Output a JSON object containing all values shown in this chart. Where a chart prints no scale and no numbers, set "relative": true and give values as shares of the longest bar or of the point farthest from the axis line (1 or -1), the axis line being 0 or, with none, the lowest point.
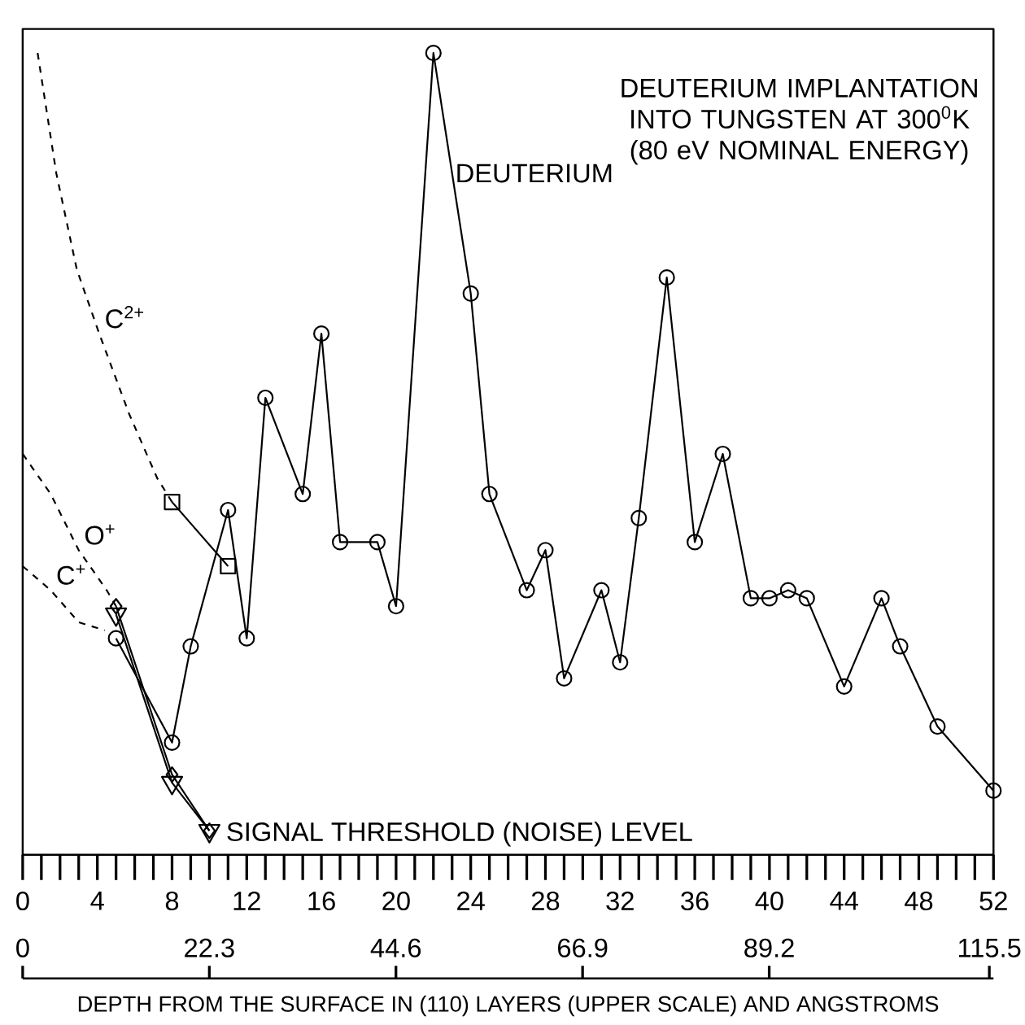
{
  "chart_data": {
    "type": "line",
    "title": "DEUTERIUM IMPLANTATION INTO TUNGSTEN AT 300$^{0}$K (80 eV NOMINAL ENERGY)",
    "xlabel": "DEPTH FROM THE SURFACE IN (110) LAYERS (UPPER SCALE) AND ANGSTROMS",
    "relative": true,
    "grid": false,
    "xlim": [
      0,
      52
    ],
    "xticks": [
      0,
      {
        "value": 1,
        "label": null
      },
      {
        "value": 2,
        "label": null
      },
      {
        "value": 3,
        "label": null
      },
      4,
      {
        "value": 5,
        "label": null
      },
      {
        "value": 6,
        "label": null
      },
      {
        "value": 7,
        "label": null
      },
      8,
      {
        "value": 9,
        "label": null
      },
      {
        "value": 10,
        "label": null
      },
      {
        "value": 11,
        "label": null
      },
      12,
      {
        "value": 13,
        "label": null
      },
      {
        "value": 14,
        "label": null
      },
      {
        "value": 15,
        "label": null
      },
      16,
      {
        "value": 17,
        "label": null
      },
      {
        "value": 18,
        "label": null
      },
      {
        "value": 19,
        "label": null
      },
      20,
      {
        "value": 21,
        "label": null
      },
      {
        "value": 22,
        "label": null
      },
      {
        "value": 23,
        "label": null
      },
      24,
      {
        "value": 25,
        "label": null
      },
      {
        "value": 26,
        "label": null
      },
      {
        "value": 27,
        "label": null
      },
      28,
      {
        "value": 29,
        "label": null
      },
      {
        "value": 30,
        "label": null
      },
      {
        "value": 31,
        "label": null
      },
      32,
      {
        "value": 33,
        "label": null
      },
      {
        "value": 34,
        "label": null
      },
      {
        "value": 35,
        "label": null
      },
      36,
      {
        "value": 37,
        "label": null
      },
      {
        "value": 38,
        "label": null
      },
      {
        "value": 39,
        "label": null
      },
      40,
      {
        "value": 41,
        "label": null
      },
      {
        "value": 42,
        "label": null
      },
      {
        "value": 43,
        "label": null
      },
      44,
      {
        "value": 45,
        "label": null
      },
      {
        "value": 46,
        "label": null
      },
      {
        "value": 47,
        "label": null
      },
      48,
      {
        "value": 49,
        "label": null
      },
      {
        "value": 50,
        "label": null
      },
      {
        "value": 51,
        "label": null
      },
      52
    ],
    "x2lim": [
      0,
      116
    ],
    "x2ticks": [
      0,
      22.3,
      44.6,
      66.9,
      89.2,
      115.5
    ],
    "annotations": [
      "SIGNAL THRESHOLD (NOISE) LEVEL"
    ],
    "series": [
      {
        "name": "DEUTERIUM",
        "color": "#000000",
        "marker": "circle",
        "line_style": "solid",
        "x": [
          5,
          8,
          9,
          11,
          12,
          13,
          15,
          16,
          17,
          19,
          20,
          22,
          24,
          25,
          27,
          28,
          29,
          31,
          32,
          33,
          34.5,
          36,
          37.5,
          39,
          40,
          41,
          42,
          44,
          46,
          47,
          49,
          52
        ],
        "values": [
          0.27,
          0.14,
          0.26,
          0.43,
          0.27,
          0.57,
          0.45,
          0.65,
          0.39,
          0.39,
          0.31,
          1.0,
          0.7,
          0.45,
          0.33,
          0.38,
          0.22,
          0.33,
          0.24,
          0.42,
          0.72,
          0.39,
          0.5,
          0.32,
          0.32,
          0.33,
          0.32,
          0.21,
          0.32,
          0.26,
          0.16,
          0.08
        ]
      },
      {
        "name": "C$^{2+}$",
        "color": "#000000",
        "marker": "none",
        "line_style": "dashed",
        "x": [
          0.8,
          1.8,
          2.9,
          4.1,
          5.7,
          7.2,
          8
        ],
        "values": [
          1.0,
          0.85,
          0.73,
          0.65,
          0.55,
          0.47,
          0.44
        ]
      },
      {
        "color": "#000000",
        "marker": "square",
        "line_style": "solid",
        "x": [
          8,
          11
        ],
        "values": [
          0.44,
          0.36
        ]
      },
      {
        "name": "O$^{+}$",
        "color": "#000000",
        "marker": "none",
        "line_style": "dashed",
        "x": [
          0,
          1.5,
          3,
          4.5,
          5
        ],
        "values": [
          0.5,
          0.45,
          0.38,
          0.33,
          0.31
        ]
      },
      {
        "color": "#000000",
        "marker": "diamond",
        "line_style": "solid",
        "x": [
          5,
          8,
          10
        ],
        "values": [
          0.31,
          0.1,
          0.03
        ]
      },
      {
        "name": "C$^{+}$",
        "color": "#000000",
        "marker": "none",
        "line_style": "dashed",
        "x": [
          0,
          1.5,
          3,
          4.4
        ],
        "values": [
          0.36,
          0.33,
          0.29,
          0.28
        ]
      },
      {
        "color": "#000000",
        "marker": "triangle",
        "line_style": "solid",
        "x": [
          5,
          8,
          10
        ],
        "values": [
          0.3,
          0.09,
          0.03
        ]
      }
    ]
  }
}
